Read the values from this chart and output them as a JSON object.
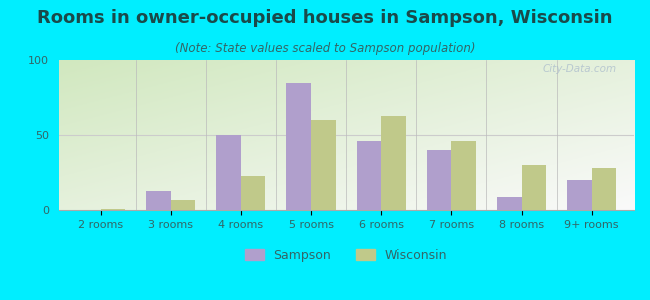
{
  "title": "Rooms in owner-occupied houses in Sampson, Wisconsin",
  "subtitle": "(Note: State values scaled to Sampson population)",
  "categories": [
    "2 rooms",
    "3 rooms",
    "4 rooms",
    "5 rooms",
    "6 rooms",
    "7 rooms",
    "8 rooms",
    "9+ rooms"
  ],
  "sampson_values": [
    0,
    13,
    50,
    85,
    46,
    40,
    9,
    20
  ],
  "wisconsin_values": [
    1,
    7,
    23,
    60,
    63,
    46,
    30,
    28
  ],
  "sampson_color": "#b09fcc",
  "wisconsin_color": "#c0c98a",
  "background_color": "#00eeff",
  "ylim": [
    0,
    100
  ],
  "yticks": [
    0,
    50,
    100
  ],
  "bar_width": 0.35,
  "title_fontsize": 13,
  "subtitle_fontsize": 8.5,
  "tick_fontsize": 8,
  "legend_labels": [
    "Sampson",
    "Wisconsin"
  ],
  "watermark": "City-Data.com",
  "title_color": "#1a4a4a",
  "subtitle_color": "#336666",
  "tick_color": "#336666"
}
